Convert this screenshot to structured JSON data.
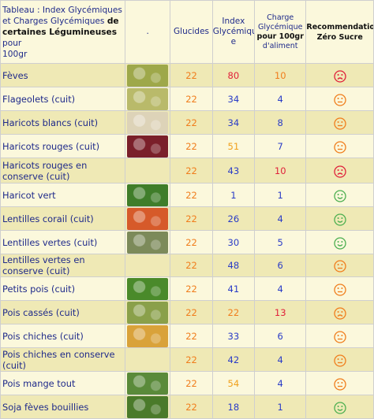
{
  "header": {
    "title_line1": "Tableau : Index Glycémiques",
    "title_line2a": "et Charges Glycémiques ",
    "title_line2b": "de",
    "title_line3a": "certaines Légumineuses",
    "title_line3b": " pour",
    "title_line4": "100gr",
    "image_col": ".",
    "glucides": "Glucides",
    "index_glycemique_1": "Index",
    "index_glycemique_2": "Glycémiqu",
    "index_glycemique_3": "e",
    "charge_1": "Charge",
    "charge_2": "Glycémique",
    "charge_3": "pour 100gr",
    "charge_4": "d'aliment",
    "recommandation_1": "Recommendation",
    "recommandation_2": "Zéro Sucre"
  },
  "colors": {
    "red": "#e0203a",
    "blue": "#2a3cc7",
    "orange": "#f07d1c",
    "yellow": "#f0a01c",
    "green": "#4caf50"
  },
  "rows": [
    {
      "name": "Fèves",
      "glucides": "22",
      "ig": "80",
      "ig_color": "red",
      "cg": "10",
      "cg_color": "orange",
      "rec": "red-frown",
      "img": "#9ea84a"
    },
    {
      "name": "Flageolets (cuit)",
      "glucides": "22",
      "ig": "34",
      "ig_color": "blue",
      "cg": "4",
      "cg_color": "blue",
      "rec": "orange-neutral",
      "img": "#b9ba6a"
    },
    {
      "name": "Haricots blancs (cuit)",
      "glucides": "22",
      "ig": "34",
      "ig_color": "blue",
      "cg": "8",
      "cg_color": "blue",
      "rec": "orange-neutral",
      "img": "#ddd3b8"
    },
    {
      "name": "Haricots rouges (cuit)",
      "glucides": "22",
      "ig": "51",
      "ig_color": "yellow",
      "cg": "7",
      "cg_color": "blue",
      "rec": "orange-neutral",
      "img": "#7a1f2a"
    },
    {
      "name": "Haricots rouges en conserve (cuit)",
      "glucides": "22",
      "ig": "43",
      "ig_color": "blue",
      "cg": "10",
      "cg_color": "red",
      "rec": "red-frown",
      "img": ""
    },
    {
      "name": "Haricot vert",
      "glucides": "22",
      "ig": "1",
      "ig_color": "blue",
      "cg": "1",
      "cg_color": "blue",
      "rec": "green-smile",
      "img": "#3f7d2a"
    },
    {
      "name": "Lentilles corail (cuit)",
      "glucides": "22",
      "ig": "26",
      "ig_color": "blue",
      "cg": "4",
      "cg_color": "blue",
      "rec": "green-smile",
      "img": "#d65a2a"
    },
    {
      "name": "Lentilles vertes (cuit)",
      "glucides": "22",
      "ig": "30",
      "ig_color": "blue",
      "cg": "5",
      "cg_color": "blue",
      "rec": "green-smile",
      "img": "#7c8a5a"
    },
    {
      "name": "Lentilles vertes en conserve (cuit)",
      "glucides": "22",
      "ig": "48",
      "ig_color": "blue",
      "cg": "6",
      "cg_color": "blue",
      "rec": "orange-neutral",
      "img": ""
    },
    {
      "name": "Petits pois (cuit)",
      "glucides": "22",
      "ig": "41",
      "ig_color": "blue",
      "cg": "4",
      "cg_color": "blue",
      "rec": "orange-neutral",
      "img": "#4a8a2a"
    },
    {
      "name": "Pois cassés (cuit)",
      "glucides": "22",
      "ig": "22",
      "ig_color": "orange",
      "cg": "13",
      "cg_color": "red",
      "rec": "orange-frown",
      "img": "#8aa04a"
    },
    {
      "name": "Pois chiches (cuit)",
      "glucides": "22",
      "ig": "33",
      "ig_color": "blue",
      "cg": "6",
      "cg_color": "blue",
      "rec": "orange-neutral",
      "img": "#d9a23a"
    },
    {
      "name": "Pois chiches en conserve (cuit)",
      "glucides": "22",
      "ig": "42",
      "ig_color": "blue",
      "cg": "4",
      "cg_color": "blue",
      "rec": "orange-neutral",
      "img": ""
    },
    {
      "name": "Pois mange tout",
      "glucides": "22",
      "ig": "54",
      "ig_color": "yellow",
      "cg": "4",
      "cg_color": "blue",
      "rec": "orange-neutral",
      "img": "#5a8a3a"
    },
    {
      "name": "Soja fèves bouillies",
      "glucides": "22",
      "ig": "18",
      "ig_color": "blue",
      "cg": "1",
      "cg_color": "blue",
      "rec": "green-smile",
      "img": "#4a7a2a"
    }
  ]
}
